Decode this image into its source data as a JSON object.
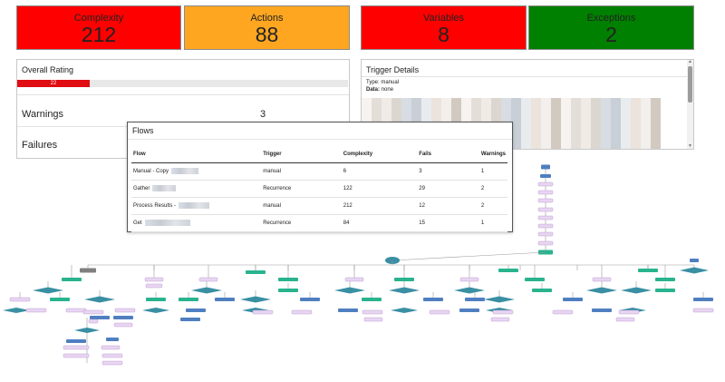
{
  "tiles": [
    {
      "label": "Complexity",
      "value": "212",
      "color": "#ff0000"
    },
    {
      "label": "Actions",
      "value": "88",
      "color": "#ffa621"
    },
    {
      "label": "Variables",
      "value": "8",
      "color": "#ff0000"
    },
    {
      "label": "Exceptions",
      "value": "2",
      "color": "#008000"
    }
  ],
  "overall": {
    "title": "Overall Rating",
    "rating": 22,
    "rating_label": "22",
    "rating_max": 100,
    "warnings_label": "Warnings",
    "warnings_value": "3",
    "failures_label": "Failures"
  },
  "trigger": {
    "title": "Trigger Details",
    "type_line": "Type: manual",
    "data_key": "Data:",
    "data_value": "none"
  },
  "flows": {
    "title": "Flows",
    "columns": [
      "Flow",
      "Trigger",
      "Complexity",
      "Fails",
      "Warnings"
    ],
    "rows": [
      {
        "flow": "Manual - Copy",
        "trigger": "manual",
        "complexity": "6",
        "fails": "3",
        "warnings": "1"
      },
      {
        "flow": "Gather",
        "trigger": "Recurrence",
        "complexity": "122",
        "fails": "29",
        "warnings": "2"
      },
      {
        "flow": "Process Results -",
        "trigger": "manual",
        "complexity": "212",
        "fails": "12",
        "warnings": "2"
      },
      {
        "flow": "Get",
        "trigger": "Recurrence",
        "complexity": "84",
        "fails": "15",
        "warnings": "1"
      }
    ]
  },
  "colors": {
    "node_blue": "#4f7fc0",
    "node_green": "#29b38e",
    "node_teal_diamond": "#3a8fa3",
    "node_purple": "#e8d5f2",
    "node_gray": "#808080",
    "edge": "#9a9a9a",
    "rating_fill": "#e00d12"
  }
}
